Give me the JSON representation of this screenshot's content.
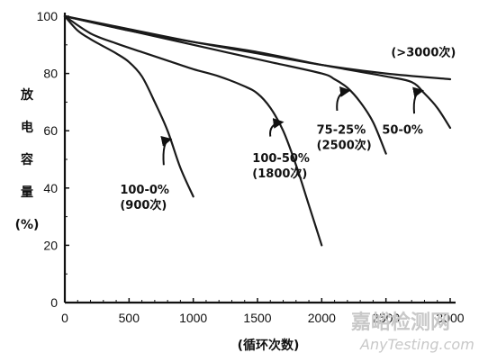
{
  "chart_data": {
    "type": "line",
    "xlim": [
      0,
      3000
    ],
    "ylim": [
      0,
      100
    ],
    "x_ticks": [
      0,
      500,
      1000,
      1500,
      2000,
      2500,
      3000
    ],
    "y_ticks": [
      0,
      20,
      40,
      60,
      80,
      100
    ],
    "xlabel": "(循环次数)",
    "ylabel_chars": [
      "放",
      "电",
      "容",
      "量",
      "(%)"
    ],
    "grid": false,
    "series": [
      {
        "key": "s1",
        "x": [
          0,
          100,
          200,
          300,
          400,
          500,
          600,
          700,
          800,
          900,
          1000
        ],
        "y": [
          100,
          95,
          92,
          89.5,
          87,
          84,
          79,
          70,
          60,
          47,
          37
        ]
      },
      {
        "key": "s2",
        "x": [
          0,
          200,
          400,
          600,
          800,
          1000,
          1200,
          1400,
          1500,
          1600,
          1700,
          1800,
          1900,
          2000
        ],
        "y": [
          100,
          94,
          90.5,
          87.5,
          84.5,
          81.5,
          79,
          75.5,
          73,
          68,
          60,
          48,
          34,
          20
        ]
      },
      {
        "key": "s3",
        "x": [
          0,
          400,
          800,
          1200,
          1600,
          2000,
          2100,
          2200,
          2300,
          2400,
          2500
        ],
        "y": [
          100,
          96,
          92,
          88,
          84,
          80,
          78,
          75,
          70,
          63,
          52
        ]
      },
      {
        "key": "s4",
        "x": [
          0,
          500,
          1000,
          1500,
          2000,
          2500,
          2700,
          2800,
          2900,
          3000
        ],
        "y": [
          100,
          95,
          91,
          87.5,
          83,
          79,
          77,
          73,
          68,
          61
        ]
      },
      {
        "key": "s5",
        "x": [
          0,
          500,
          1000,
          1500,
          2000,
          2500,
          3000
        ],
        "y": [
          100,
          95.5,
          91,
          87,
          83,
          80,
          78
        ]
      }
    ],
    "annotations": [
      {
        "lines": [
          "100-0%",
          "(900次)"
        ],
        "x": 430,
        "y": 38,
        "arrow_from": [
          770,
          48
        ],
        "arrow_to": [
          820,
          57
        ]
      },
      {
        "lines": [
          "100-50%",
          "(1800次)"
        ],
        "x": 1460,
        "y": 49,
        "arrow_from": [
          1600,
          58
        ],
        "arrow_to": [
          1690,
          63
        ]
      },
      {
        "lines": [
          "75-25%",
          "(2500次)"
        ],
        "x": 1960,
        "y": 59,
        "arrow_from": [
          2120,
          67
        ],
        "arrow_to": [
          2210,
          74
        ]
      },
      {
        "lines": [
          "50-0%"
        ],
        "x": 2470,
        "y": 59,
        "arrow_from": [
          2720,
          66
        ],
        "arrow_to": [
          2780,
          74
        ]
      },
      {
        "lines": [
          "(>3000次)"
        ],
        "x": 2540,
        "y": 86,
        "arrow_from": null,
        "arrow_to": null
      }
    ]
  },
  "watermark": {
    "cn": "嘉峪检测网",
    "en": "AnyTesting.com"
  }
}
